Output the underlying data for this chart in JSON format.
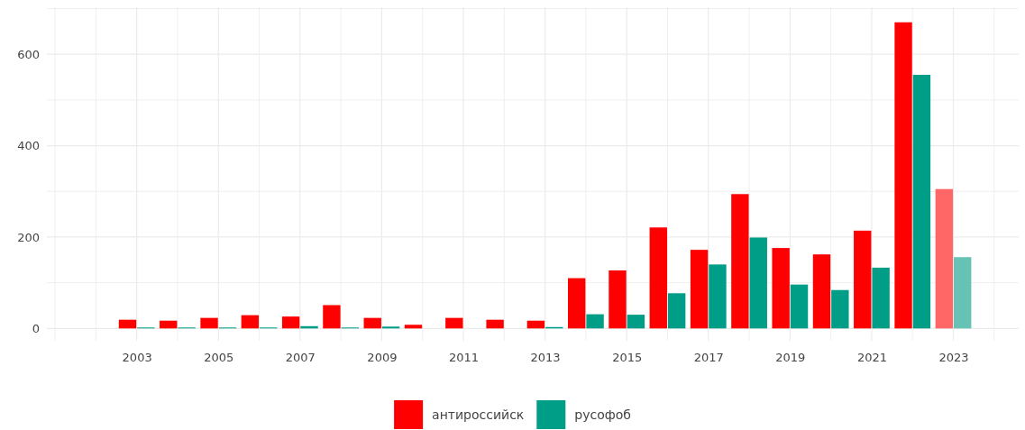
{
  "chart_data": {
    "type": "bar",
    "x": [
      2003,
      2004,
      2005,
      2006,
      2007,
      2008,
      2009,
      2010,
      2011,
      2012,
      2013,
      2014,
      2015,
      2016,
      2017,
      2018,
      2019,
      2020,
      2021,
      2022,
      2023
    ],
    "series": [
      {
        "name": "антироссийск",
        "color": "#ff0000",
        "colors": [
          "#ff0000",
          "#ff0000",
          "#ff0000",
          "#ff0000",
          "#ff0000",
          "#ff0000",
          "#ff0000",
          "#ff0000",
          "#ff0000",
          "#ff0000",
          "#ff0000",
          "#ff0000",
          "#ff0000",
          "#ff0000",
          "#ff0000",
          "#ff0000",
          "#ff0000",
          "#ff0000",
          "#ff0000",
          "#ff0000",
          "#ff6666"
        ],
        "values": [
          19,
          17,
          23,
          29,
          26,
          51,
          23,
          8,
          23,
          19,
          17,
          110,
          127,
          221,
          172,
          294,
          176,
          162,
          214,
          670,
          305
        ]
      },
      {
        "name": "русофоб",
        "color": "#009e87",
        "colors": [
          "#009e87",
          "#009e87",
          "#009e87",
          "#009e87",
          "#009e87",
          "#009e87",
          "#009e87",
          "#009e87",
          "#009e87",
          "#009e87",
          "#009e87",
          "#009e87",
          "#009e87",
          "#009e87",
          "#009e87",
          "#009e87",
          "#009e87",
          "#009e87",
          "#009e87",
          "#009e87",
          "#66c2b4"
        ],
        "values": [
          2,
          2,
          2,
          2,
          5,
          2,
          4,
          0,
          0,
          0,
          3,
          31,
          30,
          77,
          140,
          199,
          96,
          84,
          133,
          555,
          156
        ]
      }
    ],
    "xlim": [
      2000.8,
      2024.6
    ],
    "xticks": [
      {
        "value": 2001,
        "label": null
      },
      {
        "value": 2002,
        "label": null
      },
      2003,
      {
        "value": 2004,
        "label": null
      },
      2005,
      {
        "value": 2006,
        "label": null
      },
      2007,
      {
        "value": 2008,
        "label": null
      },
      2009,
      {
        "value": 2010,
        "label": null
      },
      2011,
      {
        "value": 2012,
        "label": null
      },
      2013,
      {
        "value": 2014,
        "label": null
      },
      2015,
      {
        "value": 2016,
        "label": null
      },
      2017,
      {
        "value": 2018,
        "label": null
      },
      2019,
      {
        "value": 2020,
        "label": null
      },
      2021,
      {
        "value": 2022,
        "label": null
      },
      2023,
      {
        "value": 2024,
        "label": null
      }
    ],
    "ylim": [
      -27,
      703
    ],
    "yticks": [
      0,
      {
        "value": 100,
        "label": null
      },
      200,
      {
        "value": 300,
        "label": null
      },
      400,
      {
        "value": 500,
        "label": null
      },
      600,
      {
        "value": 700,
        "label": null
      }
    ],
    "grid": true,
    "legend": "bottom"
  }
}
